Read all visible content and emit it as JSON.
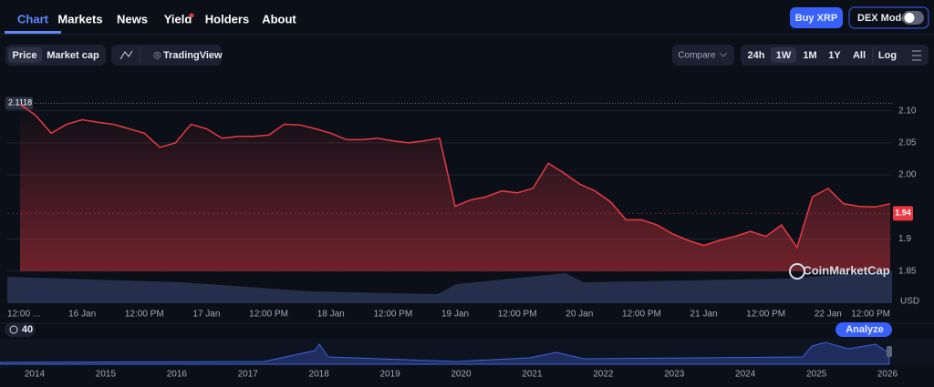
{
  "nav": [
    "Chart",
    "Markets",
    "News",
    "Yield",
    "Holders",
    "About"
  ],
  "buttons": {
    "buy": "Buy XRP",
    "dex": "DEX Mode"
  },
  "toolbar": {
    "modes": [
      "Price",
      "Market cap"
    ],
    "tradingview": "TradingView",
    "compare": "Compare",
    "ranges": [
      "24h",
      "1W",
      "1M",
      "1Y",
      "All"
    ],
    "log": "Log"
  },
  "chart_data": {
    "type": "line",
    "color": "#ea3943",
    "categories": [
      "12:00 ...",
      null,
      null,
      null,
      "16 Jan",
      null,
      null,
      null,
      "12:00 PM",
      null,
      null,
      null,
      "17 Jan",
      null,
      null,
      null,
      "12:00 PM",
      null,
      null,
      null,
      "18 Jan",
      null,
      null,
      null,
      "12:00 PM",
      null,
      null,
      null,
      "19 Jan",
      null,
      null,
      null,
      "12:00 PM",
      null,
      null,
      null,
      "20 Jan",
      null,
      null,
      null,
      "12:00 PM",
      null,
      null,
      null,
      "21 Jan",
      null,
      null,
      null,
      "12:00 PM",
      null,
      null,
      null,
      "22 Jan",
      null,
      null,
      null,
      "12:00 PM"
    ],
    "values": [
      2.11,
      2.093,
      2.065,
      2.079,
      2.086,
      2.082,
      2.079,
      2.072,
      2.065,
      2.043,
      2.05,
      2.079,
      2.072,
      2.057,
      2.06,
      2.06,
      2.062,
      2.079,
      2.078,
      2.072,
      2.065,
      2.055,
      2.055,
      2.057,
      2.053,
      2.05,
      2.053,
      2.057,
      1.951,
      1.961,
      1.966,
      1.975,
      1.972,
      1.979,
      2.018,
      2.003,
      1.986,
      1.975,
      1.958,
      1.93,
      1.93,
      1.922,
      1.908,
      1.898,
      1.89,
      1.898,
      1.904,
      1.912,
      1.904,
      1.922,
      1.887,
      1.966,
      1.979,
      1.955,
      1.951,
      1.95,
      1.955
    ],
    "ylim": [
      1.8,
      2.135
    ],
    "yticks": [
      1.85,
      1.9,
      {
        "value": 2,
        "label": "2.00"
      },
      2.05,
      {
        "value": 2.1,
        "label": "2.10"
      }
    ],
    "high": 2.1118,
    "last": 1.94,
    "unit": "USD",
    "watermark": "CoinMarketCap",
    "grid": true
  },
  "navigator": {
    "indicator": "40",
    "analyze": "Analyze",
    "years": [
      "2014",
      "2015",
      "2016",
      "2017",
      "2018",
      "2019",
      "2020",
      "2021",
      "2022",
      "2023",
      "2024",
      "2025",
      "2026"
    ]
  }
}
